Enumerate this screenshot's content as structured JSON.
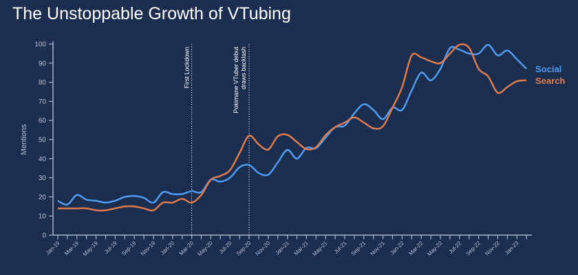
{
  "chart_data": {
    "type": "line",
    "title": "The Unstoppable Growth of VTubing",
    "xlabel": "",
    "ylabel": "Mentions",
    "ylim": [
      0,
      100
    ],
    "yticks": [
      0,
      10,
      20,
      30,
      40,
      50,
      60,
      70,
      80,
      90,
      100
    ],
    "x": [
      "Jan-19",
      "Feb-19",
      "Mar-19",
      "Apr-19",
      "May-19",
      "Jun-19",
      "Jul-19",
      "Aug-19",
      "Sep-19",
      "Oct-19",
      "Nov-19",
      "Dec-19",
      "Jan-20",
      "Feb-20",
      "Mar-20",
      "Apr-20",
      "May-20",
      "Jun-20",
      "Jul-20",
      "Aug-20",
      "Sep-20",
      "Oct-20",
      "Nov-20",
      "Dec-20",
      "Jan-21",
      "Feb-21",
      "Mar-21",
      "Apr-21",
      "May-21",
      "Jun-21",
      "Jul-21",
      "Aug-21",
      "Sep-21",
      "Oct-21",
      "Nov-21",
      "Dec-21",
      "Jan-22",
      "Feb-22",
      "Mar-22",
      "Apr-22",
      "May-22",
      "Jun-22",
      "Jul-22",
      "Aug-22",
      "Sep-22",
      "Oct-22",
      "Nov-22",
      "Dec-22",
      "Jan-23",
      "Feb-23"
    ],
    "xtick_labels": [
      "Jan-19",
      "Mar-19",
      "May-19",
      "Jul-19",
      "Sep-19",
      "Nov-19",
      "Jan-20",
      "Mar-20",
      "May-20",
      "Jul-20",
      "Sep-20",
      "Nov-20",
      "Jan-21",
      "Mar-21",
      "May-21",
      "Jul-21",
      "Sep-21",
      "Nov-21",
      "Jan-22",
      "Mar-22",
      "May-22",
      "Jul-22",
      "Sep-22",
      "Nov-22",
      "Jan-23"
    ],
    "series": [
      {
        "name": "Social",
        "color": "#4f9cf0",
        "values": [
          18,
          16,
          21,
          18.5,
          18,
          17,
          18,
          20,
          20.5,
          19.5,
          17,
          22.5,
          21.5,
          21.5,
          23,
          22.5,
          29,
          28,
          30,
          35.5,
          36.7,
          32.5,
          31.6,
          38,
          44.6,
          40,
          45.7,
          45.5,
          51,
          56.5,
          57.3,
          63.7,
          68.5,
          65.5,
          60.7,
          66.7,
          65.5,
          75.7,
          85,
          81,
          87,
          97.8,
          97,
          95,
          95,
          99.6,
          94,
          96.6,
          92,
          87
        ]
      },
      {
        "name": "Search",
        "color": "#e07c4c",
        "values": [
          14,
          14,
          14,
          14,
          13,
          13,
          14,
          15,
          15,
          14,
          13,
          17,
          17,
          19,
          17,
          21,
          29,
          31,
          34,
          43,
          52,
          47.5,
          44.8,
          51.7,
          52.5,
          48.7,
          45,
          46,
          52.3,
          56.5,
          58.9,
          61.6,
          58.9,
          55.9,
          57,
          66.7,
          77.5,
          94,
          93,
          91,
          90,
          95,
          99.6,
          98,
          87,
          83,
          74.5,
          77.5,
          80.5,
          81
        ]
      }
    ],
    "annotations": [
      {
        "x": "Mar-20",
        "text": "First Lockdown"
      },
      {
        "x": "Sep-20",
        "text": "Pokimane VTuber debut draws backlash"
      }
    ],
    "annotation_lines": [
      "Pokimane VTuber debut",
      "draws backlash"
    ],
    "legend": "right, inline labels at line ends",
    "grid": false
  }
}
